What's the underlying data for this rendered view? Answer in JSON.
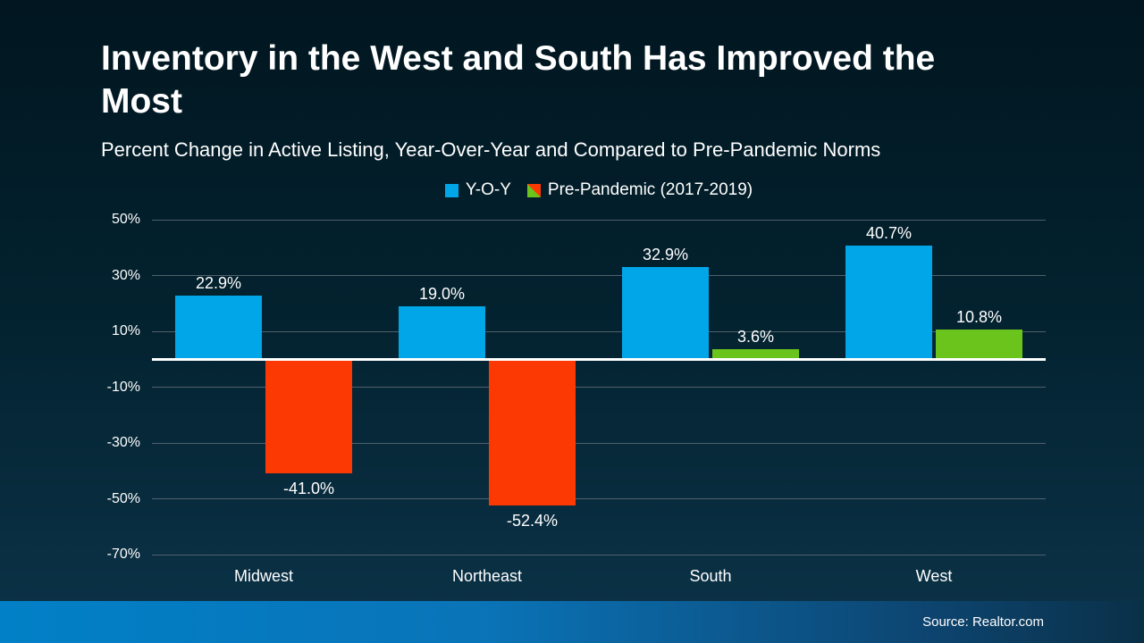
{
  "slide": {
    "title": "Inventory in the West and South Has Improved the Most",
    "subtitle": "Percent Change in Active Listing, Year-Over-Year and Compared to Pre-Pandemic Norms",
    "source": "Source: Realtor.com"
  },
  "legend": {
    "items": [
      {
        "label": "Y-O-Y",
        "swatch": "solid-blue-square"
      },
      {
        "label": "Pre-Pandemic (2017-2019)",
        "swatch": "diagonal-split-green-red-square"
      }
    ]
  },
  "colors": {
    "yoy_blue": "#00a6e8",
    "prepandemic_negative_red": "#fd3903",
    "prepandemic_positive_green": "#6ac41c",
    "zero_line": "#ffffff",
    "gridline": "#51606b",
    "background_top": "#011620",
    "background_bottom": "#0c3349",
    "footer_left": "#0180c7",
    "footer_right": "#0a3048",
    "text": "#ffffff"
  },
  "chart_data": {
    "type": "bar",
    "title": "Inventory in the West and South Has Improved the Most",
    "subtitle": "Percent Change in Active Listing, Year-Over-Year and Compared to Pre-Pandemic Norms",
    "categories": [
      "Midwest",
      "Northeast",
      "South",
      "West"
    ],
    "series": [
      {
        "name": "Y-O-Y",
        "values": [
          22.9,
          19.0,
          32.9,
          40.7
        ]
      },
      {
        "name": "Pre-Pandemic (2017-2019)",
        "values": [
          -41.0,
          -52.4,
          3.6,
          10.8
        ]
      }
    ],
    "value_labels": [
      [
        "22.9%",
        "19.0%",
        "32.9%",
        "40.7%"
      ],
      [
        "-41.0%",
        "-52.4%",
        "3.6%",
        "10.8%"
      ]
    ],
    "yticks": [
      50,
      30,
      10,
      -10,
      -30,
      -50,
      -70
    ],
    "ytick_labels": [
      "50%",
      "30%",
      "10%",
      "-10%",
      "-30%",
      "-50%",
      "-70%"
    ],
    "ylim": [
      -70,
      50
    ],
    "grid": true,
    "legend_position": "top-center",
    "xlabel": "",
    "ylabel": ""
  }
}
